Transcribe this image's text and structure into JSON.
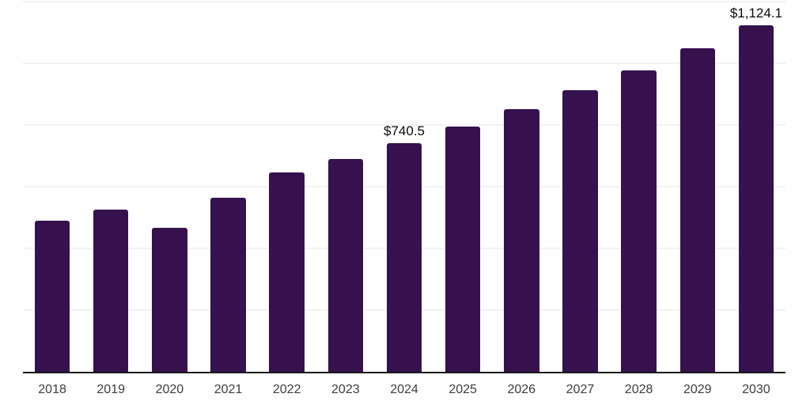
{
  "chart_data": {
    "type": "bar",
    "title": "",
    "xlabel": "",
    "ylabel": "",
    "categories": [
      "2018",
      "2019",
      "2020",
      "2021",
      "2022",
      "2023",
      "2024",
      "2025",
      "2026",
      "2027",
      "2028",
      "2029",
      "2030"
    ],
    "values": [
      490,
      526,
      466,
      563,
      645,
      691,
      740.5,
      794,
      851,
      912,
      978,
      1049,
      1124.1
    ],
    "value_labels": {
      "2024": "$740.5",
      "2030": "$1,124.1"
    },
    "ylim": [
      0,
      1200
    ],
    "gridline_interval": 200,
    "grid": "horizontal-light",
    "y_tick_labels_visible": false,
    "legend": "none",
    "bar_width_ratio": 0.6,
    "colors": {
      "bar": "#36114E",
      "gridline": "#F2F2F2",
      "axis_line": "#1A1A1A",
      "tick_label": "#3C3C3C",
      "value_label": "#0A0A0A",
      "background": "#FFFFFF"
    }
  }
}
